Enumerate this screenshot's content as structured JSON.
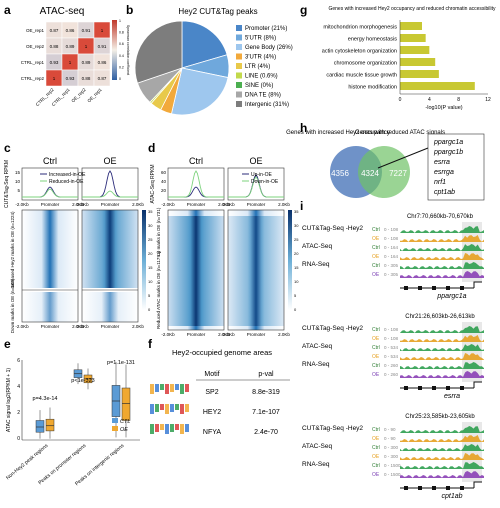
{
  "panel_letters": [
    "a",
    "b",
    "c",
    "d",
    "e",
    "f",
    "g",
    "h",
    "i"
  ],
  "panel_a": {
    "title": "ATAC-seq",
    "rows": [
      "OE_rep1",
      "OE_rep2",
      "CTRL_rep1",
      "CTRL_rep2"
    ],
    "cols": [
      "CTRL_rep2",
      "CTRL_rep1",
      "OE_rep2",
      "OE_rep1"
    ],
    "matrix": [
      [
        0.87,
        0.86,
        0.91,
        1
      ],
      [
        0.88,
        0.89,
        1,
        0.91
      ],
      [
        0.93,
        1,
        0.89,
        0.86
      ],
      [
        1,
        0.93,
        0.88,
        0.87
      ]
    ],
    "scale_label": "Spearman correlation coefficient",
    "scale_ticks": [
      "1",
      "0.8",
      "0.6",
      "0.4",
      "0.2",
      "0"
    ]
  },
  "panel_c": {
    "ctrl": "Ctrl",
    "oe": "OE",
    "ylabel": "CUT&Tag-Seq RPKM",
    "yticks": [
      "15",
      "10",
      "5"
    ],
    "legend": [
      "Increased-in-OE",
      "Reduced-in-OE"
    ],
    "xticks": [
      "-2.0Kb",
      "Promoter",
      "2.0Kb"
    ],
    "hm_up": "Increased Hey2 marks in OE (n=1224)",
    "hm_down": "Down marks in OE (n=168)",
    "scale": [
      "35",
      "30",
      "25",
      "20",
      "15",
      "10",
      "5",
      "0"
    ]
  },
  "panel_d": {
    "ctrl": "Ctrl",
    "oe": "OE",
    "ylabel": "ATAC-Seq RPKM",
    "yticks": [
      "60",
      "40",
      "20"
    ],
    "legend": [
      "Up-in-OE",
      "Down-in-OE"
    ],
    "xticks": [
      "-2.0Kb",
      "Promoter",
      "2.0Kb"
    ],
    "hm_up": "Up marks in OE (n=731)",
    "hm_down": "Reduced ATAC marks in OE (n=11791)",
    "scale": [
      "35",
      "30",
      "25",
      "20",
      "15",
      "10",
      "5",
      "0"
    ]
  },
  "panel_e": {
    "ylabel": "ATAC signal log2(RPKM + 1)",
    "categories": [
      "Non-Hey2 peak regions",
      "Peaks on promoter regions",
      "Peaks on intergenic regions"
    ],
    "pvals": [
      "p=4.3e-14",
      "p<1e-323",
      "p=1.1e-131"
    ],
    "legend": [
      "CTL",
      "OE"
    ],
    "colors": {
      "CTL": "#5b9bd5",
      "OE": "#f0a830"
    }
  },
  "panel_f": {
    "title": "Hey2-occupied genome areas",
    "headers": [
      "Motif",
      "p-val"
    ],
    "rows": [
      [
        "SP2",
        "8.8e-319"
      ],
      [
        "HEY2",
        "7.1e-107"
      ],
      [
        "NFYA",
        "2.4e-70"
      ]
    ]
  },
  "panel_g": {
    "title": "Genes with increased Hey2 occupancy and reduced chromatin accessibility",
    "xlabel": "-log10(P value)",
    "xticks": [
      "0",
      "4",
      "8",
      "12"
    ]
  },
  "panel_h": {
    "left_label": "Genes with increased Hey2 occupancy",
    "right_label": "Genes with reduced ATAC signals",
    "left_only": "4356",
    "overlap": "4324",
    "right_only": "7227",
    "genes": [
      "ppargc1a",
      "ppargc1b",
      "esrra",
      "esrrga",
      "nrf1",
      "cpt1ab"
    ]
  },
  "panel_i": {
    "loci": [
      {
        "coord": "Chr7:70,660kb-70,670kb",
        "gene": "ppargc1a",
        "ranges": [
          "0 - 108",
          "0 - 108",
          "0 - 164",
          "0 - 164",
          "0 - 305",
          "0 - 305"
        ]
      },
      {
        "coord": "Chr21:26,603kb-26,613kb",
        "gene": "esrra",
        "ranges": [
          "0 - 108",
          "0 - 108",
          "0 - 534",
          "0 - 534",
          "0 - 260",
          "0 - 260"
        ]
      },
      {
        "coord": "Chr25:23,585kb-23,605kb",
        "gene": "cpt1ab",
        "ranges": [
          "0 - 90",
          "0 - 90",
          "0 - 300",
          "0 - 300",
          "0 - 1500",
          "0 - 1500"
        ]
      }
    ],
    "track_labels": [
      "CUT&Tag-Seq -Hey2",
      "ATAC-Seq",
      "RNA-Seq"
    ],
    "ctrl": "Ctrl",
    "oe": "OE"
  },
  "chart_data": [
    {
      "type": "pie",
      "title": "Hey2 CUT&Tag peaks",
      "categories": [
        "Promoter (21%)",
        "5'UTR (8%)",
        "Gene Body (26%)",
        "3'UTR (4%)",
        "LTR (4%)",
        "LINE (0.6%)",
        "SINE (0%)",
        "DNA TE (8%)",
        "Intergenic (31%)"
      ],
      "values": [
        21,
        8,
        26,
        4,
        4,
        0.6,
        0,
        8,
        31
      ],
      "colors": [
        "#4a86c8",
        "#6fa8dc",
        "#9ec7ee",
        "#f2a93b",
        "#e8c94a",
        "#c2d94b",
        "#4caf50",
        "#a7a7a7",
        "#7d7d7d"
      ]
    },
    {
      "type": "bar",
      "orientation": "horizontal",
      "categories": [
        "histone modification",
        "cardiac muscle tissue growth",
        "chromosome organization",
        "actin cytoskeleton organization",
        "energy homeostasis",
        "mitochondrion morphogenesis"
      ],
      "values": [
        10.2,
        5.3,
        4.8,
        4.0,
        3.5,
        3.0
      ],
      "xlabel": "-log10(P value)",
      "xlim": [
        0,
        12
      ]
    }
  ]
}
